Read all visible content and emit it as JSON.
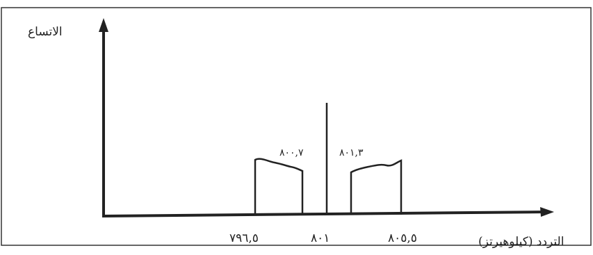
{
  "diagram": {
    "y_axis_title": "الاتساع",
    "x_axis_title": "التردد (كيلوهيرتز)",
    "tick_labels": {
      "lower": "٧٩٦,٥",
      "center": "٨٠١",
      "upper": "٨٠٥,٥"
    },
    "band_labels": {
      "lower_edge": "٨٠٠,٧",
      "upper_edge": "٨٠١,٣"
    },
    "colors": {
      "ink": "#222222",
      "frame": "#333333",
      "background": "#ffffff"
    }
  }
}
